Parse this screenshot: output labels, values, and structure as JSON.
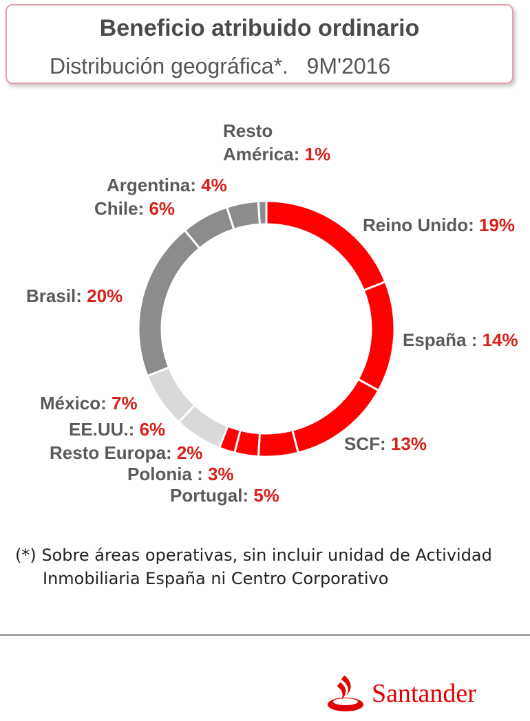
{
  "header": {
    "title": "Beneficio atribuido ordinario",
    "subtitle": "Distribución geográfica*.   9M'2016"
  },
  "chart_data": {
    "type": "pie",
    "variant": "donut",
    "title": "Beneficio atribuido ordinario",
    "subtitle": "Distribución geográfica*. 9M'2016",
    "unit": "%",
    "slices": [
      {
        "name": "Reino Unido",
        "label": "Reino Unido:",
        "value": 19,
        "value_label": "19%",
        "color": "#ff0000"
      },
      {
        "name": "España",
        "label": "España :",
        "value": 14,
        "value_label": "14%",
        "color": "#ff0000"
      },
      {
        "name": "SCF",
        "label": "SCF:",
        "value": 13,
        "value_label": "13%",
        "color": "#ff0000"
      },
      {
        "name": "Portugal",
        "label": "Portugal:",
        "value": 5,
        "value_label": "5%",
        "color": "#ff0000"
      },
      {
        "name": "Polonia",
        "label": "Polonia :",
        "value": 3,
        "value_label": "3%",
        "color": "#ff0000"
      },
      {
        "name": "Resto Europa",
        "label": "Resto Europa:",
        "value": 2,
        "value_label": "2%",
        "color": "#ff0000"
      },
      {
        "name": "EE.UU.",
        "label": "EE.UU.:",
        "value": 6,
        "value_label": "6%",
        "color": "#d9d9d9"
      },
      {
        "name": "México",
        "label": "México:",
        "value": 7,
        "value_label": "7%",
        "color": "#d9d9d9"
      },
      {
        "name": "Brasil",
        "label": "Brasil:",
        "value": 20,
        "value_label": "20%",
        "color": "#8c8c8c"
      },
      {
        "name": "Chile",
        "label": "Chile:",
        "value": 6,
        "value_label": "6%",
        "color": "#8c8c8c"
      },
      {
        "name": "Argentina",
        "label": "Argentina:",
        "value": 4,
        "value_label": "4%",
        "color": "#8c8c8c"
      },
      {
        "name": "Resto América",
        "label": "Resto América:",
        "value": 1,
        "value_label": "1%",
        "color": "#8c8c8c"
      }
    ]
  },
  "footnote": {
    "line1": "(*) Sobre áreas operativas, sin incluir unidad de Actividad",
    "line2": "Inmobiliaria España ni Centro Corporativo"
  },
  "brand": {
    "name": "Santander",
    "color": "#e00000"
  }
}
